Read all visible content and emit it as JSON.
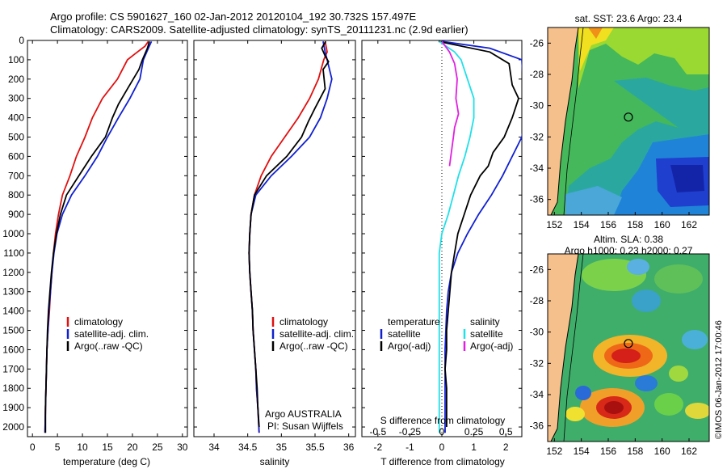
{
  "header": {
    "line1": "Argo profile: CS 5901627_160 02-Jan-2012 20120104_192 30.732S 157.497E",
    "line2": "Climatology: CARS2009. Satellite-adjusted climatology: synTS_20111231.nc (2.9d earlier)"
  },
  "colors": {
    "climatology": "#e01010",
    "satellite": "#1020d0",
    "argo": "#000000",
    "salinity_sat": "#20e0e8",
    "salinity_argo": "#e020e0",
    "land": "#f6c08c"
  },
  "chart_data": [
    {
      "type": "line",
      "panel": "temperature",
      "xlabel": "temperature (deg C)",
      "xlim": [
        -1,
        31
      ],
      "xticks": [
        "0",
        "5",
        "10",
        "15",
        "20",
        "25",
        "30"
      ],
      "ylim": [
        0,
        2050
      ],
      "yticks": [
        "0",
        "100",
        "200",
        "300",
        "400",
        "500",
        "600",
        "700",
        "800",
        "900",
        "1000",
        "1100",
        "1200",
        "1300",
        "1400",
        "1500",
        "1600",
        "1700",
        "1800",
        "1900",
        "2000"
      ],
      "legend": [
        "climatology",
        "satellite-adj. clim.",
        "Argo(..raw -QC)"
      ],
      "series": [
        {
          "name": "climatology",
          "color": "#e01010",
          "points": [
            [
              23.2,
              5
            ],
            [
              22.5,
              30
            ],
            [
              20.5,
              70
            ],
            [
              19,
              100
            ],
            [
              17,
              200
            ],
            [
              14,
              300
            ],
            [
              12,
              400
            ],
            [
              10.5,
              500
            ],
            [
              8.8,
              600
            ],
            [
              7.5,
              700
            ],
            [
              6,
              800
            ],
            [
              5.2,
              900
            ],
            [
              4.6,
              1000
            ],
            [
              4.2,
              1100
            ],
            [
              3.9,
              1200
            ],
            [
              3.6,
              1300
            ],
            [
              3.4,
              1400
            ],
            [
              3.1,
              1500
            ],
            [
              2.9,
              1600
            ],
            [
              2.8,
              1700
            ],
            [
              2.7,
              1800
            ],
            [
              2.6,
              1900
            ],
            [
              2.5,
              2030
            ]
          ]
        },
        {
          "name": "satellite-adj. clim.",
          "color": "#1020d0",
          "points": [
            [
              23.8,
              5
            ],
            [
              23.2,
              40
            ],
            [
              22.2,
              100
            ],
            [
              21.5,
              200
            ],
            [
              19.5,
              300
            ],
            [
              17.2,
              400
            ],
            [
              15,
              500
            ],
            [
              13,
              600
            ],
            [
              10.5,
              700
            ],
            [
              7.8,
              800
            ],
            [
              6,
              900
            ],
            [
              4.9,
              1000
            ],
            [
              4.3,
              1100
            ],
            [
              3.9,
              1200
            ],
            [
              3.6,
              1300
            ],
            [
              3.3,
              1400
            ],
            [
              3.1,
              1500
            ],
            [
              2.9,
              1600
            ],
            [
              2.8,
              1700
            ],
            [
              2.7,
              1800
            ],
            [
              2.6,
              1900
            ],
            [
              2.5,
              2030
            ]
          ]
        },
        {
          "name": "Argo(..raw -QC)",
          "color": "#000000",
          "points": [
            [
              23.4,
              5
            ],
            [
              23,
              40
            ],
            [
              22,
              100
            ],
            [
              21.3,
              150
            ],
            [
              19,
              250
            ],
            [
              17.2,
              330
            ],
            [
              16,
              400
            ],
            [
              14.6,
              500
            ],
            [
              11.8,
              600
            ],
            [
              9.3,
              700
            ],
            [
              6.8,
              800
            ],
            [
              5.6,
              900
            ],
            [
              4.8,
              1000
            ],
            [
              4.2,
              1100
            ],
            [
              3.8,
              1200
            ],
            [
              3.5,
              1300
            ],
            [
              3.2,
              1400
            ],
            [
              3,
              1500
            ],
            [
              2.9,
              1600
            ],
            [
              2.8,
              1700
            ],
            [
              2.7,
              1800
            ],
            [
              2.6,
              1900
            ],
            [
              2.6,
              2030
            ]
          ]
        }
      ]
    },
    {
      "type": "line",
      "panel": "salinity",
      "xlabel": "salinity",
      "xlim": [
        33.7,
        36.1
      ],
      "xticks": [
        "34",
        "34.5",
        "35",
        "35.5",
        "36"
      ],
      "ylim": [
        0,
        2050
      ],
      "legend": [
        "climatology",
        "satellite-adj. clim.",
        "Argo(..raw -QC)"
      ],
      "annotation": [
        "Argo AUSTRALIA",
        "PI: Susan Wijffels"
      ],
      "series": [
        {
          "name": "climatology",
          "color": "#e01010",
          "points": [
            [
              35.65,
              5
            ],
            [
              35.68,
              60
            ],
            [
              35.63,
              100
            ],
            [
              35.55,
              200
            ],
            [
              35.42,
              300
            ],
            [
              35.25,
              400
            ],
            [
              35.05,
              500
            ],
            [
              34.85,
              600
            ],
            [
              34.7,
              700
            ],
            [
              34.6,
              800
            ],
            [
              34.55,
              900
            ],
            [
              34.53,
              1000
            ],
            [
              34.52,
              1100
            ],
            [
              34.53,
              1200
            ],
            [
              34.55,
              1300
            ],
            [
              34.57,
              1400
            ],
            [
              34.58,
              1500
            ],
            [
              34.6,
              1600
            ],
            [
              34.62,
              1700
            ],
            [
              34.63,
              1800
            ],
            [
              34.65,
              1900
            ],
            [
              34.67,
              2030
            ]
          ]
        },
        {
          "name": "satellite-adj. clim.",
          "color": "#1020d0",
          "points": [
            [
              35.62,
              5
            ],
            [
              35.65,
              60
            ],
            [
              35.68,
              100
            ],
            [
              35.75,
              200
            ],
            [
              35.68,
              300
            ],
            [
              35.58,
              400
            ],
            [
              35.42,
              500
            ],
            [
              35.15,
              600
            ],
            [
              34.85,
              700
            ],
            [
              34.62,
              800
            ],
            [
              34.55,
              900
            ],
            [
              34.53,
              1000
            ],
            [
              34.52,
              1100
            ],
            [
              34.53,
              1200
            ],
            [
              34.55,
              1300
            ],
            [
              34.57,
              1400
            ],
            [
              34.58,
              1500
            ],
            [
              34.6,
              1600
            ],
            [
              34.62,
              1700
            ],
            [
              34.63,
              1800
            ],
            [
              34.65,
              1900
            ],
            [
              34.67,
              2030
            ]
          ]
        },
        {
          "name": "Argo(..raw -QC)",
          "color": "#000000",
          "points": [
            [
              35.66,
              5
            ],
            [
              35.6,
              40
            ],
            [
              35.65,
              80
            ],
            [
              35.7,
              110
            ],
            [
              35.62,
              150
            ],
            [
              35.65,
              250
            ],
            [
              35.5,
              350
            ],
            [
              35.4,
              420
            ],
            [
              35.3,
              500
            ],
            [
              35.08,
              600
            ],
            [
              34.78,
              700
            ],
            [
              34.6,
              800
            ],
            [
              34.55,
              900
            ],
            [
              34.53,
              1000
            ],
            [
              34.52,
              1100
            ],
            [
              34.53,
              1200
            ],
            [
              34.55,
              1300
            ],
            [
              34.57,
              1400
            ],
            [
              34.58,
              1500
            ],
            [
              34.6,
              1600
            ],
            [
              34.62,
              1700
            ],
            [
              34.64,
              1800
            ],
            [
              34.65,
              1900
            ],
            [
              34.67,
              2000
            ]
          ]
        }
      ]
    },
    {
      "type": "line",
      "panel": "difference",
      "xlabel": "T difference from climatology",
      "xlabel_top": "S difference from climatology",
      "xlim": [
        -2.5,
        2.5
      ],
      "xticks": [
        "-2",
        "-1",
        "0",
        "1",
        "2"
      ],
      "xticks_top": [
        "-0.5",
        "-0.25",
        "0",
        "0.25",
        "0.5"
      ],
      "ylim": [
        0,
        2050
      ],
      "legend_left_title": "temperature",
      "legend_right_title": "salinity",
      "legend_left": [
        "satellite",
        "Argo(-adj)"
      ],
      "legend_right": [
        "satellite",
        "Argo(-adj)"
      ],
      "series": [
        {
          "name": "temperature satellite",
          "color": "#1020d0",
          "points": [
            [
              0,
              5
            ],
            [
              1.5,
              40
            ],
            [
              2.5,
              100
            ],
            [
              2.6,
              400
            ],
            [
              2.5,
              500
            ],
            [
              2.2,
              600
            ],
            [
              1.9,
              700
            ],
            [
              1.55,
              800
            ],
            [
              1.15,
              900
            ],
            [
              0.8,
              1000
            ],
            [
              0.5,
              1100
            ],
            [
              0.3,
              1200
            ],
            [
              0.2,
              1300
            ],
            [
              0.15,
              1400
            ],
            [
              0.1,
              1600
            ],
            [
              0.1,
              1800
            ],
            [
              0.1,
              2030
            ]
          ]
        },
        {
          "name": "temperature Argo(-adj)",
          "color": "#000000",
          "points": [
            [
              -0.1,
              5
            ],
            [
              1.5,
              60
            ],
            [
              2.1,
              120
            ],
            [
              2.2,
              230
            ],
            [
              2.4,
              300
            ],
            [
              2.2,
              400
            ],
            [
              1.95,
              500
            ],
            [
              1.6,
              580
            ],
            [
              1.45,
              650
            ],
            [
              1.2,
              700
            ],
            [
              0.9,
              800
            ],
            [
              0.7,
              900
            ],
            [
              0.5,
              1000
            ],
            [
              0.4,
              1100
            ],
            [
              0.3,
              1200
            ],
            [
              0.25,
              1300
            ],
            [
              0.2,
              1400
            ],
            [
              0.15,
              1500
            ],
            [
              0.15,
              1600
            ],
            [
              0.1,
              1700
            ],
            [
              0.15,
              1800
            ],
            [
              0.15,
              1900
            ],
            [
              0.15,
              2000
            ]
          ]
        },
        {
          "name": "salinity satellite",
          "color": "#20e0e8",
          "points": [
            [
              -0.02,
              5
            ],
            [
              0.1,
              60
            ],
            [
              0.15,
              100
            ],
            [
              0.2,
              200
            ],
            [
              0.25,
              300
            ],
            [
              0.25,
              400
            ],
            [
              0.22,
              500
            ],
            [
              0.18,
              600
            ],
            [
              0.13,
              700
            ],
            [
              0.09,
              800
            ],
            [
              0.05,
              900
            ],
            [
              0,
              1000
            ],
            [
              -0.02,
              1100
            ],
            [
              -0.02,
              1200
            ],
            [
              -0.02,
              1300
            ],
            [
              -0.02,
              1400
            ],
            [
              -0.02,
              1600
            ],
            [
              -0.02,
              1800
            ],
            [
              -0.02,
              2030
            ]
          ]
        },
        {
          "name": "salinity Argo(-adj)",
          "color": "#e020e0",
          "points": [
            [
              0,
              5
            ],
            [
              0.06,
              60
            ],
            [
              0.1,
              120
            ],
            [
              0.12,
              200
            ],
            [
              0.11,
              300
            ],
            [
              0.13,
              380
            ],
            [
              0.1,
              450
            ],
            [
              0.09,
              500
            ],
            [
              0.08,
              550
            ],
            [
              0.06,
              650
            ]
          ]
        }
      ]
    }
  ],
  "map_sst": {
    "title": "sat. SST: 23.6 Argo: 23.4",
    "xticks": [
      "152",
      "154",
      "156",
      "158",
      "160",
      "162"
    ],
    "yticks": [
      "-26",
      "-28",
      "-30",
      "-32",
      "-34",
      "-36"
    ]
  },
  "map_sla": {
    "title_line1": "Altim. SLA: 0.38",
    "title_line2": "Argo h1000: 0.23 h2000: 0.27",
    "xticks": [
      "152",
      "154",
      "156",
      "158",
      "160",
      "162"
    ],
    "yticks": [
      "-26",
      "-28",
      "-30",
      "-32",
      "-34",
      "-36"
    ]
  },
  "watermark": "©IMOS 06-Jan-2012 17:00:46"
}
